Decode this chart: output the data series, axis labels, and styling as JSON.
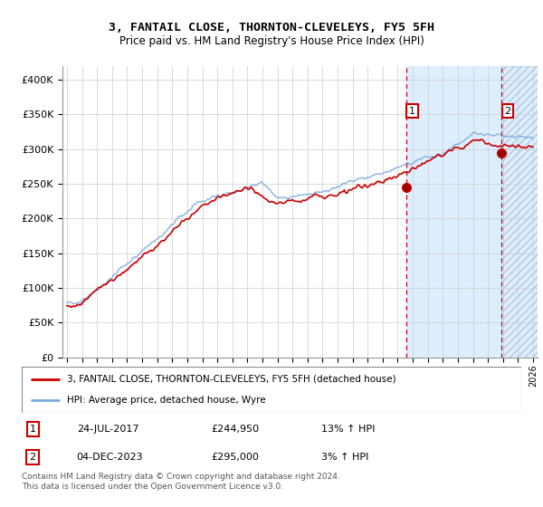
{
  "title": "3, FANTAIL CLOSE, THORNTON-CLEVELEYS, FY5 5FH",
  "subtitle": "Price paid vs. HM Land Registry's House Price Index (HPI)",
  "legend_line1": "3, FANTAIL CLOSE, THORNTON-CLEVELEYS, FY5 5FH (detached house)",
  "legend_line2": "HPI: Average price, detached house, Wyre",
  "annotation1_label": "1",
  "annotation1_date": "24-JUL-2017",
  "annotation1_price": "£244,950",
  "annotation1_pct": "13% ↑ HPI",
  "annotation2_label": "2",
  "annotation2_date": "04-DEC-2023",
  "annotation2_price": "£295,000",
  "annotation2_pct": "3% ↑ HPI",
  "footer": "Contains HM Land Registry data © Crown copyright and database right 2024.\nThis data is licensed under the Open Government Licence v3.0.",
  "red_color": "#cc0000",
  "blue_color": "#7aaadd",
  "shaded_color": "#ddeeff",
  "ylim": [
    0,
    420000
  ],
  "yticks": [
    0,
    50000,
    100000,
    150000,
    200000,
    250000,
    300000,
    350000,
    400000
  ],
  "marker1_x": 2017.57,
  "marker1_y": 244950,
  "marker2_x": 2023.92,
  "marker2_y": 295000,
  "shade_start1": 2017.57,
  "shade_end1": 2023.92,
  "shade_start2": 2023.92,
  "shade_end2": 2026.3,
  "xmin": 1994.7,
  "xmax": 2026.3,
  "xtick_start": 1995,
  "xtick_end": 2026
}
